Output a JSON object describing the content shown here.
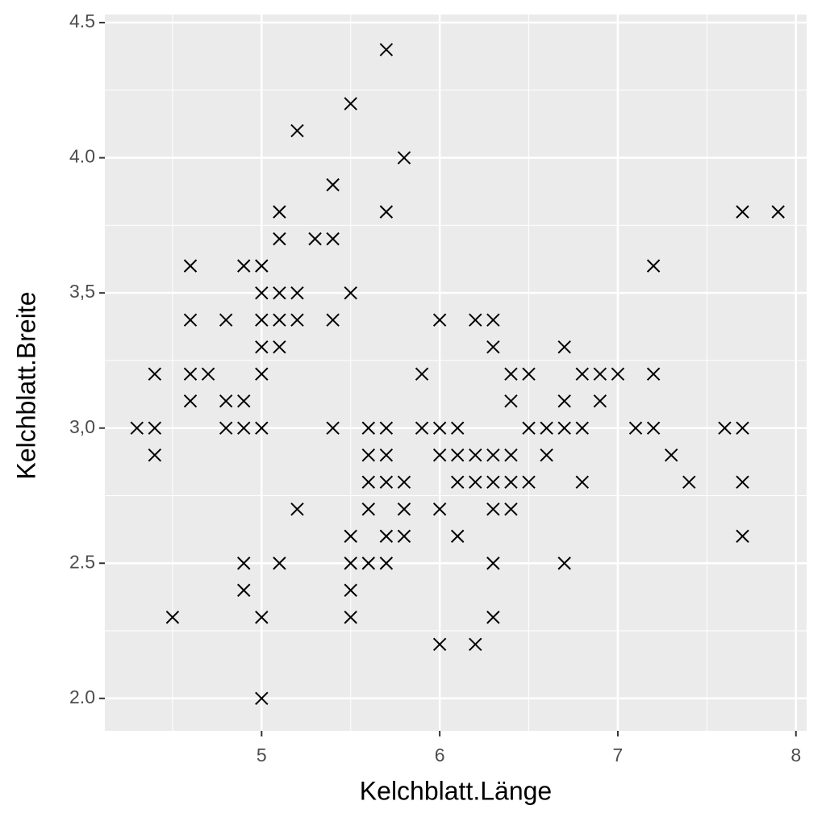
{
  "chart_data": {
    "type": "scatter",
    "x_label": "Kelchblatt.Länge",
    "y_label": "Kelchblatt.Breite",
    "marker": "x",
    "color": "#000000",
    "grid": true,
    "xlim": [
      4.12,
      8.06
    ],
    "ylim": [
      1.88,
      4.53
    ],
    "xticks": [
      5,
      6,
      7,
      8
    ],
    "yticks": [
      {
        "value": 2,
        "label": "2.0"
      },
      2.5,
      {
        "value": 3,
        "label": "3,0"
      },
      {
        "value": 3.5,
        "label": "3,5"
      },
      {
        "value": 4,
        "label": "4.0"
      },
      4.5
    ],
    "x": [
      5.7,
      5.5,
      5.2,
      5.8,
      5.4,
      5.1,
      5.7,
      7.7,
      7.9,
      5.1,
      5.3,
      5.4,
      4.6,
      4.9,
      5.0,
      7.2,
      5.0,
      5.1,
      5.2,
      5.5,
      4.6,
      4.8,
      5.0,
      5.1,
      5.2,
      5.4,
      6.0,
      6.2,
      6.3,
      5.0,
      5.1,
      6.3,
      6.7,
      4.4,
      4.6,
      4.7,
      5.0,
      5.9,
      6.4,
      6.5,
      6.8,
      6.9,
      7.0,
      7.2,
      4.6,
      4.8,
      4.9,
      6.4,
      6.7,
      6.9,
      4.3,
      4.4,
      4.8,
      4.9,
      5.0,
      5.4,
      5.6,
      5.7,
      5.9,
      6.0,
      6.1,
      6.5,
      6.6,
      6.7,
      6.8,
      7.1,
      7.2,
      7.6,
      7.7,
      4.4,
      5.6,
      5.7,
      6.0,
      6.1,
      6.2,
      6.3,
      6.4,
      6.6,
      7.3,
      5.6,
      5.7,
      5.8,
      6.1,
      6.2,
      6.3,
      6.4,
      6.5,
      6.8,
      7.4,
      7.7,
      5.2,
      5.6,
      5.8,
      6.0,
      6.3,
      6.4,
      5.5,
      5.7,
      5.8,
      6.1,
      7.7,
      4.9,
      5.1,
      5.5,
      5.6,
      5.7,
      6.3,
      6.7,
      4.9,
      5.5,
      4.5,
      5.0,
      5.5,
      6.3,
      6.0,
      6.2,
      5.0
    ],
    "y": [
      4.4,
      4.2,
      4.1,
      4.0,
      3.9,
      3.8,
      3.8,
      3.8,
      3.8,
      3.7,
      3.7,
      3.7,
      3.6,
      3.6,
      3.6,
      3.6,
      3.5,
      3.5,
      3.5,
      3.5,
      3.4,
      3.4,
      3.4,
      3.4,
      3.4,
      3.4,
      3.4,
      3.4,
      3.4,
      3.3,
      3.3,
      3.3,
      3.3,
      3.2,
      3.2,
      3.2,
      3.2,
      3.2,
      3.2,
      3.2,
      3.2,
      3.2,
      3.2,
      3.2,
      3.1,
      3.1,
      3.1,
      3.1,
      3.1,
      3.1,
      3.0,
      3.0,
      3.0,
      3.0,
      3.0,
      3.0,
      3.0,
      3.0,
      3.0,
      3.0,
      3.0,
      3.0,
      3.0,
      3.0,
      3.0,
      3.0,
      3.0,
      3.0,
      3.0,
      2.9,
      2.9,
      2.9,
      2.9,
      2.9,
      2.9,
      2.9,
      2.9,
      2.9,
      2.9,
      2.8,
      2.8,
      2.8,
      2.8,
      2.8,
      2.8,
      2.8,
      2.8,
      2.8,
      2.8,
      2.8,
      2.7,
      2.7,
      2.7,
      2.7,
      2.7,
      2.7,
      2.6,
      2.6,
      2.6,
      2.6,
      2.6,
      2.5,
      2.5,
      2.5,
      2.5,
      2.5,
      2.5,
      2.5,
      2.4,
      2.4,
      2.3,
      2.3,
      2.3,
      2.3,
      2.2,
      2.2,
      2.0
    ]
  }
}
